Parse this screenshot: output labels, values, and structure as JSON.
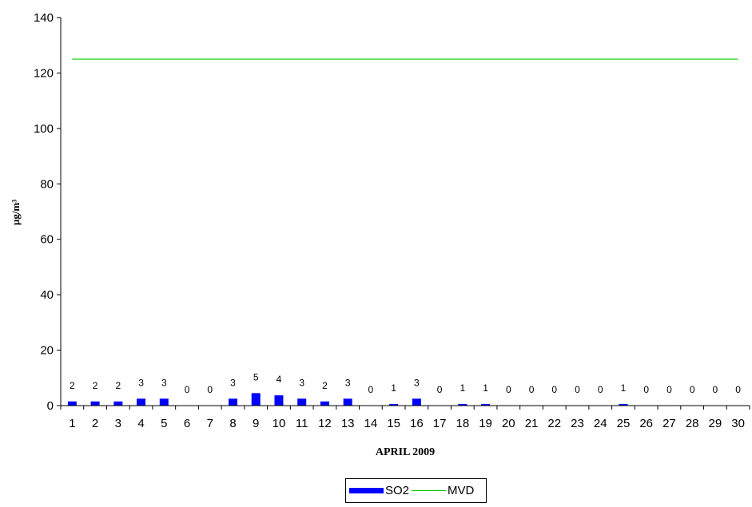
{
  "chart_data": {
    "type": "bar",
    "title": "",
    "xlabel": "APRIL 2009",
    "ylabel": "µg/m³",
    "ylim": [
      0,
      140
    ],
    "yticks": [
      "0",
      "20",
      "40",
      "60",
      "80",
      "100",
      "120",
      "140"
    ],
    "categories": [
      "1",
      "2",
      "3",
      "4",
      "5",
      "6",
      "7",
      "8",
      "9",
      "10",
      "11",
      "12",
      "13",
      "14",
      "15",
      "16",
      "17",
      "18",
      "19",
      "20",
      "21",
      "22",
      "23",
      "24",
      "25",
      "26",
      "27",
      "28",
      "29",
      "30"
    ],
    "series": [
      {
        "name": "SO2",
        "type": "bar",
        "color": "#0000ff",
        "values": [
          1.5,
          1.5,
          1.5,
          2.5,
          2.5,
          0,
          0,
          2.5,
          4.5,
          3.7,
          2.5,
          1.5,
          2.5,
          0,
          0.6,
          2.5,
          0,
          0.6,
          0.6,
          0,
          0,
          0,
          0,
          0,
          0.6,
          0,
          0,
          0,
          0,
          0
        ],
        "labels": [
          "2",
          "2",
          "2",
          "3",
          "3",
          "0",
          "0",
          "3",
          "5",
          "4",
          "3",
          "2",
          "3",
          "0",
          "1",
          "3",
          "0",
          "1",
          "1",
          "0",
          "0",
          "0",
          "0",
          "0",
          "1",
          "0",
          "0",
          "0",
          "0",
          "0"
        ]
      },
      {
        "name": "MVD",
        "type": "line",
        "color": "#00cc00",
        "values": [
          125,
          125,
          125,
          125,
          125,
          125,
          125,
          125,
          125,
          125,
          125,
          125,
          125,
          125,
          125,
          125,
          125,
          125,
          125,
          125,
          125,
          125,
          125,
          125,
          125,
          125,
          125,
          125,
          125,
          125
        ]
      }
    ],
    "grid": false,
    "legend": "bottom"
  },
  "legend": {
    "so2_label": "SO2",
    "mvd_label": "MVD"
  }
}
